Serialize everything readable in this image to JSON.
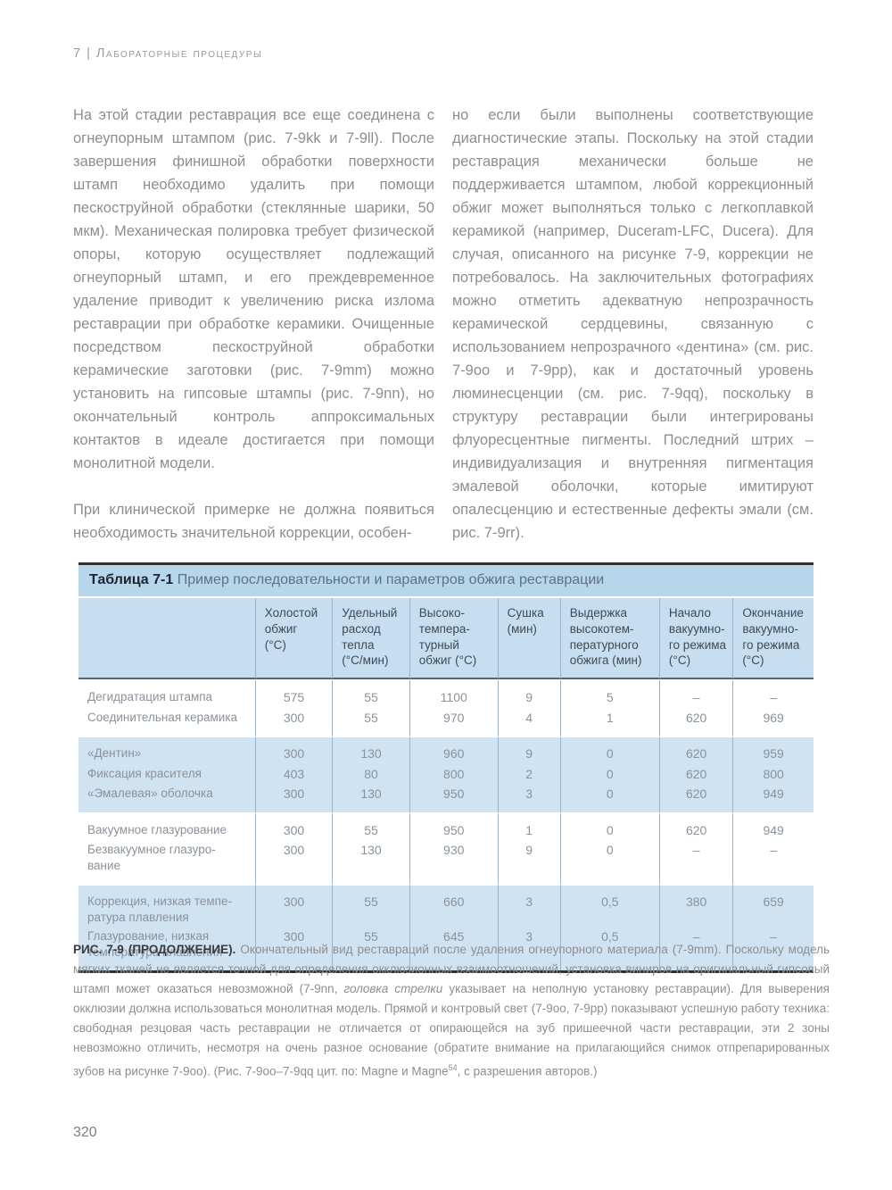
{
  "page": {
    "header": "7 | Лабораторные процедуры",
    "page_number": "320"
  },
  "columns": {
    "left_par1": "На этой стадии реставрация все еще соединена с огнеупорным штампом (рис. 7-9kk и 7-9ll). После завершения финишной обработки поверхности штамп необходимо удалить при помощи пескоструйной обработки (стеклянные шарики, 50 мкм). Механическая полировка требует физической опоры, которую осуществляет подлежащий огнеупорный штамп, и его преждевременное удаление приводит к увеличению риска излома реставрации при обработке керамики. Очищенные посредством пескоструйной обработки керамические заготовки (рис. 7-9mm) можно установить на гипсовые штампы (рис. 7-9nn), но окончательный контроль аппроксимальных контактов в идеале достигается при помощи монолитной модели.",
    "left_par2": "При клинической примерке не должна появиться необходимость значительной коррекции, особен-",
    "right_par1": "но если были выполнены соответствующие диагностические этапы. Поскольку на этой стадии реставрация механически больше не поддерживается штампом, любой коррекционный обжиг может выполняться только с легкоплавкой керамикой (например, Duceram-LFC, Ducera). Для случая, описанного на рисунке 7-9, коррекции не потребовалось. На заключительных фотографиях можно отметить адекватную непрозрачность керамической сердцевины, связанную с использованием непрозрачного «дентина» (см. рис. 7-9oo и 7-9pp), как и достаточный уровень люминесценции (см. рис. 7-9qq), поскольку в структуру реставрации были интегрированы флуоресцентные пигменты. Последний штрих – индивидуализация и внутренняя пигментация эмалевой оболочки, которые имитируют опалесценцию и естественные дефекты эмали (см. рис. 7-9rr)."
  },
  "table": {
    "title_label": "Таблица 7-1",
    "title_text": " Пример последовательности и параметров обжига реставрации",
    "columns": [
      "",
      "Холостой\nобжиг\n(°C)",
      "Удельный\nрасход\nтепла\n(°C/мин)",
      "Высоко-\nтемпера-\nтурный\nобжиг (°C)",
      "Сушка\n(мин)",
      "Выдержка\nвысокотем-\nпературного\nобжига (мин)",
      "Начало\nвакуумно-\nго режима\n(°C)",
      "Окончание\nвакуумно-\nго режима\n(°C)"
    ],
    "groups": [
      {
        "shade": false,
        "rows": [
          {
            "label": "Дегидратация штампа",
            "values": [
              "575",
              "55",
              "1100",
              "9",
              "5",
              "–",
              "–"
            ]
          },
          {
            "label": "Соединительная керамика",
            "values": [
              "300",
              "55",
              "970",
              "4",
              "1",
              "620",
              "969"
            ]
          }
        ]
      },
      {
        "shade": true,
        "rows": [
          {
            "label": "«Дентин»",
            "values": [
              "300",
              "130",
              "960",
              "9",
              "0",
              "620",
              "959"
            ]
          },
          {
            "label": "Фиксация красителя",
            "values": [
              "403",
              "80",
              "800",
              "2",
              "0",
              "620",
              "800"
            ]
          },
          {
            "label": "«Эмалевая» оболочка",
            "values": [
              "300",
              "130",
              "950",
              "3",
              "0",
              "620",
              "949"
            ]
          }
        ]
      },
      {
        "shade": false,
        "rows": [
          {
            "label": "Вакуумное глазурование",
            "values": [
              "300",
              "55",
              "950",
              "1",
              "0",
              "620",
              "949"
            ]
          },
          {
            "label": "Безвакуумное глазуро-\nвание",
            "values": [
              "300",
              "130",
              "930",
              "9",
              "0",
              "–",
              "–"
            ]
          }
        ]
      },
      {
        "shade": true,
        "rows": [
          {
            "label": "Коррекция, низкая темпе-\nратура плавления",
            "values": [
              "300",
              "55",
              "660",
              "3",
              "0,5",
              "380",
              "659"
            ]
          },
          {
            "label": "Глазурование, низкая\nтемпература плавления",
            "values": [
              "300",
              "55",
              "645",
              "3",
              "0,5",
              "–",
              "–"
            ]
          }
        ]
      }
    ]
  },
  "caption": {
    "label": "РИС. 7-9 (ПРОДОЛЖЕНИЕ).",
    "part1": " Окончательный вид реставраций после удаления огнеупорного материала (7-9mm). Поскольку модель мягких тканей не является точной для определения окклюзионных взаимоотношений, установка виниров на оригинальный гипсовый штамп может оказаться невозможной (7-9nn, ",
    "italic": "головка стрелки",
    "part2": " указывает на неполную установку реставрации). Для выверения окклюзии должна использоваться монолитная модель. Прямой и контровый свет (7-9oo, 7-9pp) показывают успешную работу техника: свободная резцовая часть реставрации не отличается от опирающейся на зуб пришеечной части реставрации, эти 2 зоны невозможно отличить, несмотря на очень разное основание (обратите внимание на прилагающийся снимок отпрепарированных зубов на рисунке 7-9oo). (Рис. 7-9oo–7-9qq цит. по: Magne и Magne",
    "sup": "54",
    "part3": ", с разрешения авторов.)"
  }
}
